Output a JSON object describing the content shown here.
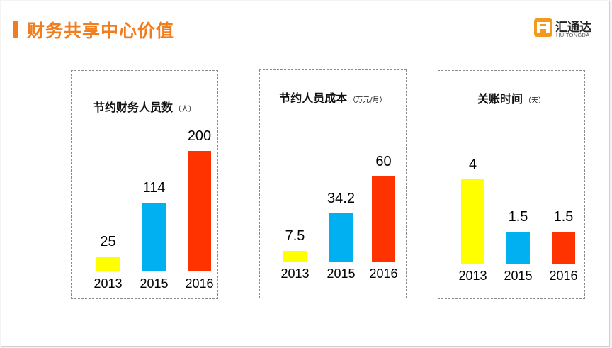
{
  "header": {
    "title": "财务共享中心价值",
    "accent_color": "#f07d1f"
  },
  "logo": {
    "name_cn": "汇通达",
    "name_en": "HUITONGDA",
    "icon": "huitongda-logo-icon",
    "color": "#f39a1e"
  },
  "chart_data": [
    {
      "type": "bar",
      "title": "节约财务人员数",
      "unit": "（人）",
      "categories": [
        "2013",
        "2015",
        "2016"
      ],
      "values": [
        25,
        114,
        200
      ],
      "colors": [
        "#ffff00",
        "#00b0f0",
        "#ff3300"
      ],
      "ylim": [
        0,
        200
      ],
      "grid": false,
      "legend": "none"
    },
    {
      "type": "bar",
      "title": "节约人员成本",
      "unit": "（万元/月）",
      "categories": [
        "2013",
        "2015",
        "2016"
      ],
      "values": [
        7.5,
        34.2,
        60
      ],
      "colors": [
        "#ffff00",
        "#00b0f0",
        "#ff3300"
      ],
      "ylim": [
        0,
        60
      ],
      "grid": false,
      "legend": "none"
    },
    {
      "type": "bar",
      "title": "关账时间",
      "unit": "（天）",
      "categories": [
        "2013",
        "2015",
        "2016"
      ],
      "values": [
        4,
        1.5,
        1.5
      ],
      "colors": [
        "#ffff00",
        "#00b0f0",
        "#ff3300"
      ],
      "ylim": [
        0,
        4
      ],
      "grid": false,
      "legend": "none"
    }
  ]
}
